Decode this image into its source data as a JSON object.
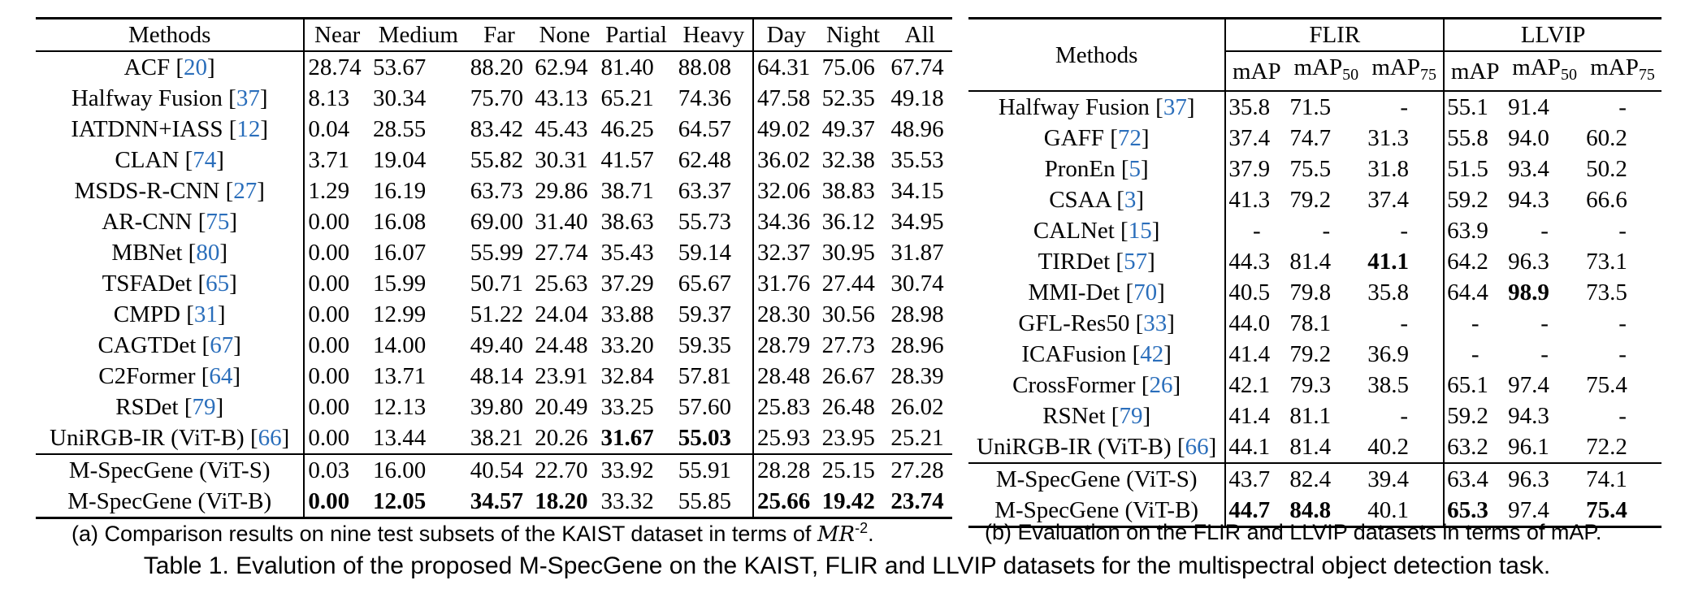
{
  "table_a": {
    "headers": [
      "Methods",
      "Near",
      "Medium",
      "Far",
      "None",
      "Partial",
      "Heavy",
      "Day",
      "Night",
      "All"
    ],
    "rows": [
      {
        "name": "ACF",
        "ref": "20",
        "v": [
          "28.74",
          "53.67",
          "88.20",
          "62.94",
          "81.40",
          "88.08",
          "64.31",
          "75.06",
          "67.74"
        ]
      },
      {
        "name": "Halfway Fusion",
        "ref": "37",
        "v": [
          "8.13",
          "30.34",
          "75.70",
          "43.13",
          "65.21",
          "74.36",
          "47.58",
          "52.35",
          "49.18"
        ]
      },
      {
        "name": "IATDNN+IASS",
        "ref": "12",
        "v": [
          "0.04",
          "28.55",
          "83.42",
          "45.43",
          "46.25",
          "64.57",
          "49.02",
          "49.37",
          "48.96"
        ]
      },
      {
        "name": "CLAN",
        "ref": "74",
        "v": [
          "3.71",
          "19.04",
          "55.82",
          "30.31",
          "41.57",
          "62.48",
          "36.02",
          "32.38",
          "35.53"
        ]
      },
      {
        "name": "MSDS-R-CNN",
        "ref": "27",
        "v": [
          "1.29",
          "16.19",
          "63.73",
          "29.86",
          "38.71",
          "63.37",
          "32.06",
          "38.83",
          "34.15"
        ]
      },
      {
        "name": "AR-CNN",
        "ref": "75",
        "v": [
          "0.00",
          "16.08",
          "69.00",
          "31.40",
          "38.63",
          "55.73",
          "34.36",
          "36.12",
          "34.95"
        ]
      },
      {
        "name": "MBNet",
        "ref": "80",
        "v": [
          "0.00",
          "16.07",
          "55.99",
          "27.74",
          "35.43",
          "59.14",
          "32.37",
          "30.95",
          "31.87"
        ]
      },
      {
        "name": "TSFADet",
        "ref": "65",
        "v": [
          "0.00",
          "15.99",
          "50.71",
          "25.63",
          "37.29",
          "65.67",
          "31.76",
          "27.44",
          "30.74"
        ]
      },
      {
        "name": "CMPD",
        "ref": "31",
        "v": [
          "0.00",
          "12.99",
          "51.22",
          "24.04",
          "33.88",
          "59.37",
          "28.30",
          "30.56",
          "28.98"
        ]
      },
      {
        "name": "CAGTDet",
        "ref": "67",
        "v": [
          "0.00",
          "14.00",
          "49.40",
          "24.48",
          "33.20",
          "59.35",
          "28.79",
          "27.73",
          "28.96"
        ]
      },
      {
        "name": "C2Former",
        "ref": "64",
        "v": [
          "0.00",
          "13.71",
          "48.14",
          "23.91",
          "32.84",
          "57.81",
          "28.48",
          "26.67",
          "28.39"
        ]
      },
      {
        "name": "RSDet",
        "ref": "79",
        "v": [
          "0.00",
          "12.13",
          "39.80",
          "20.49",
          "33.25",
          "57.60",
          "25.83",
          "26.48",
          "26.02"
        ]
      },
      {
        "name": "UniRGB-IR (ViT-B)",
        "ref": "66",
        "v": [
          "0.00",
          "13.44",
          "38.21",
          "20.26",
          "31.67",
          "55.03",
          "25.93",
          "23.95",
          "25.21"
        ],
        "bold": [
          4,
          5
        ]
      },
      {
        "name": "M-SpecGene (ViT-S)",
        "ref": "",
        "v": [
          "0.03",
          "16.00",
          "40.54",
          "22.70",
          "33.92",
          "55.91",
          "28.28",
          "25.15",
          "27.28"
        ]
      },
      {
        "name": "M-SpecGene (ViT-B)",
        "ref": "",
        "v": [
          "0.00",
          "12.05",
          "34.57",
          "18.20",
          "33.32",
          "55.85",
          "25.66",
          "19.42",
          "23.74"
        ],
        "bold": [
          0,
          1,
          2,
          3,
          6,
          7,
          8
        ]
      }
    ]
  },
  "table_b": {
    "methods_header": "Methods",
    "groups": [
      "FLIR",
      "LLVIP"
    ],
    "metrics": [
      "mAP",
      "mAP",
      "mAP"
    ],
    "metric_subs": [
      "",
      "50",
      "75"
    ],
    "rows": [
      {
        "name": "Halfway Fusion",
        "ref": "37",
        "v": [
          "35.8",
          "71.5",
          "-",
          "55.1",
          "91.4",
          "-"
        ]
      },
      {
        "name": "GAFF",
        "ref": "72",
        "v": [
          "37.4",
          "74.7",
          "31.3",
          "55.8",
          "94.0",
          "60.2"
        ]
      },
      {
        "name": "PronEn",
        "ref": "5",
        "v": [
          "37.9",
          "75.5",
          "31.8",
          "51.5",
          "93.4",
          "50.2"
        ]
      },
      {
        "name": "CSAA",
        "ref": "3",
        "v": [
          "41.3",
          "79.2",
          "37.4",
          "59.2",
          "94.3",
          "66.6"
        ]
      },
      {
        "name": "CALNet",
        "ref": "15",
        "v": [
          "-",
          "-",
          "-",
          "63.9",
          "-",
          "-"
        ]
      },
      {
        "name": "TIRDet",
        "ref": "57",
        "v": [
          "44.3",
          "81.4",
          "41.1",
          "64.2",
          "96.3",
          "73.1"
        ],
        "bold": [
          2
        ]
      },
      {
        "name": "MMI-Det",
        "ref": "70",
        "v": [
          "40.5",
          "79.8",
          "35.8",
          "64.4",
          "98.9",
          "73.5"
        ],
        "bold": [
          4
        ]
      },
      {
        "name": "GFL-Res50",
        "ref": "33",
        "v": [
          "44.0",
          "78.1",
          "-",
          "-",
          "-",
          "-"
        ]
      },
      {
        "name": "ICAFusion",
        "ref": "42",
        "v": [
          "41.4",
          "79.2",
          "36.9",
          "-",
          "-",
          "-"
        ]
      },
      {
        "name": "CrossFormer",
        "ref": "26",
        "v": [
          "42.1",
          "79.3",
          "38.5",
          "65.1",
          "97.4",
          "75.4"
        ]
      },
      {
        "name": "RSNet",
        "ref": "79",
        "v": [
          "41.4",
          "81.1",
          "-",
          "59.2",
          "94.3",
          "-"
        ]
      },
      {
        "name": "UniRGB-IR (ViT-B)",
        "ref": "66",
        "v": [
          "44.1",
          "81.4",
          "40.2",
          "63.2",
          "96.1",
          "72.2"
        ]
      },
      {
        "name": "M-SpecGene (ViT-S)",
        "ref": "",
        "v": [
          "43.7",
          "82.4",
          "39.4",
          "63.4",
          "96.3",
          "74.1"
        ]
      },
      {
        "name": "M-SpecGene (ViT-B)",
        "ref": "",
        "v": [
          "44.7",
          "84.8",
          "40.1",
          "65.3",
          "97.4",
          "75.4"
        ],
        "bold": [
          0,
          1,
          3,
          5
        ]
      }
    ]
  },
  "captions": {
    "a_prefix": "(a) Comparison results on nine test subsets of the KAIST dataset in terms of ",
    "a_metric": "MR",
    "a_metric_sup": "-2",
    "a_suffix": ".",
    "b": "(b) Evaluation on the FLIR and LLVIP datasets in terms of mAP.",
    "main": "Table 1. Evalution of the proposed M-SpecGene on the KAIST, FLIR and LLVIP datasets for the multispectral object detection task."
  }
}
